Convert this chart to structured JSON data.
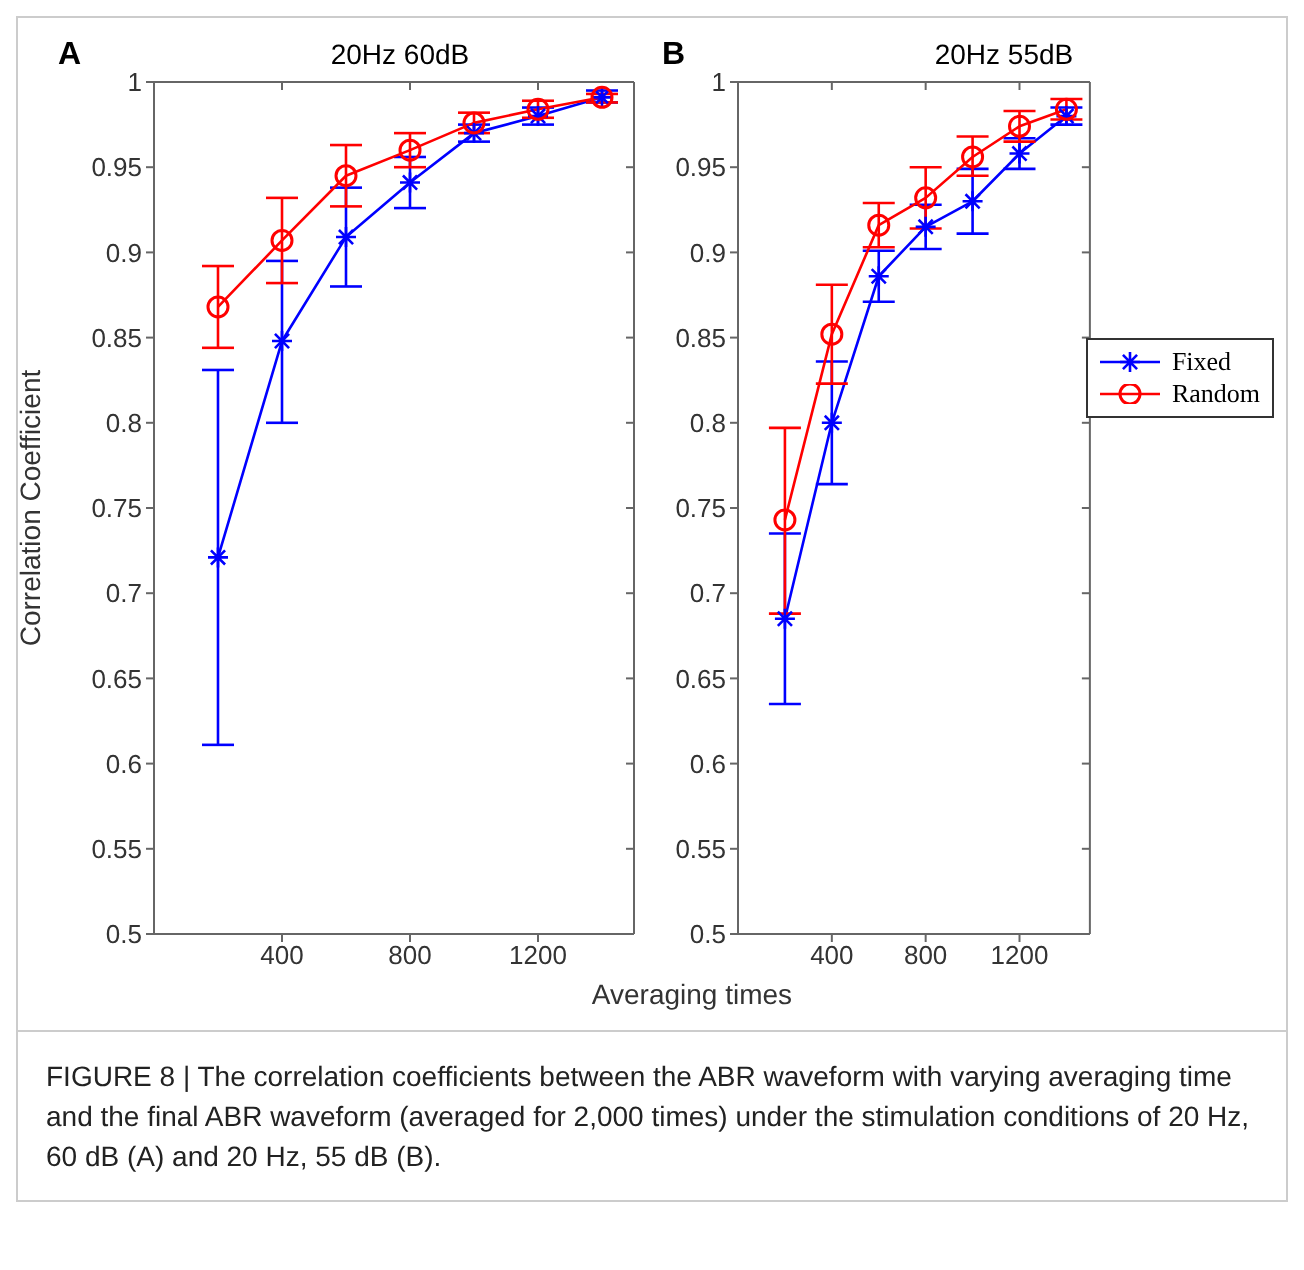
{
  "chart_data": [
    {
      "type": "line",
      "title": "20Hz 60dB",
      "xlabel": "Averaging times",
      "ylabel": "Correlation Coefficient",
      "annotations": [
        "A"
      ],
      "x": [
        200,
        400,
        600,
        800,
        1000,
        1200,
        1400
      ],
      "series": [
        {
          "color": "#0000ff",
          "marker": "cross",
          "values": [
            0.721,
            0.848,
            0.909,
            0.941,
            0.97,
            0.98,
            0.991
          ],
          "errors": [
            [
              0.611,
              0.831
            ],
            [
              0.8,
              0.895
            ],
            [
              0.88,
              0.938
            ],
            [
              0.926,
              0.956
            ],
            [
              0.965,
              0.975
            ],
            [
              0.975,
              0.985
            ],
            [
              0.988,
              0.995
            ]
          ]
        },
        {
          "color": "#ff0000",
          "marker": "circle",
          "values": [
            0.868,
            0.907,
            0.945,
            0.96,
            0.976,
            0.984,
            0.991
          ],
          "errors": [
            [
              0.844,
              0.892
            ],
            [
              0.882,
              0.932
            ],
            [
              0.927,
              0.963
            ],
            [
              0.95,
              0.97
            ],
            [
              0.97,
              0.982
            ],
            [
              0.979,
              0.989
            ],
            [
              0.988,
              0.993
            ]
          ]
        }
      ],
      "xlim": [
        0,
        1500
      ],
      "xticks": [
        400,
        800,
        1200
      ],
      "ylim": [
        0.5,
        1
      ],
      "yticks": [
        0.5,
        0.55,
        0.6,
        0.65,
        0.7,
        0.75,
        0.8,
        0.85,
        0.9,
        0.95,
        1
      ],
      "grid": false,
      "legend": false
    },
    {
      "type": "line",
      "title": "20Hz 55dB",
      "annotations": [
        "B",
        "FIGURE 8 | The correlation coefficients between the ABR waveform with varying averaging time and the final ABR waveform (averaged for 2,000 times) under the stimulation conditions of 20 Hz, 60 dB (A) and 20 Hz, 55 dB (B)."
      ],
      "x": [
        200,
        400,
        600,
        800,
        1000,
        1200,
        1400
      ],
      "series": [
        {
          "name": "Fixed",
          "color": "#0000ff",
          "marker": "cross",
          "values": [
            0.685,
            0.8,
            0.886,
            0.915,
            0.93,
            0.958,
            0.98
          ],
          "errors": [
            [
              0.635,
              0.735
            ],
            [
              0.764,
              0.836
            ],
            [
              0.871,
              0.901
            ],
            [
              0.902,
              0.928
            ],
            [
              0.911,
              0.949
            ],
            [
              0.949,
              0.967
            ],
            [
              0.975,
              0.985
            ]
          ]
        },
        {
          "name": "Random",
          "color": "#ff0000",
          "marker": "circle",
          "values": [
            0.743,
            0.852,
            0.916,
            0.932,
            0.956,
            0.974,
            0.984
          ],
          "errors": [
            [
              0.688,
              0.797
            ],
            [
              0.823,
              0.881
            ],
            [
              0.903,
              0.929
            ],
            [
              0.914,
              0.95
            ],
            [
              0.945,
              0.968
            ],
            [
              0.965,
              0.983
            ],
            [
              0.978,
              0.99
            ]
          ]
        }
      ],
      "xlim": [
        0,
        1500
      ],
      "xticks": [
        400,
        800,
        1200
      ],
      "ylim": [
        0.5,
        1
      ],
      "yticks": [
        0.5,
        0.55,
        0.6,
        0.65,
        0.7,
        0.75,
        0.8,
        0.85,
        0.9,
        0.95,
        1
      ],
      "grid": false,
      "legend": "right"
    }
  ]
}
